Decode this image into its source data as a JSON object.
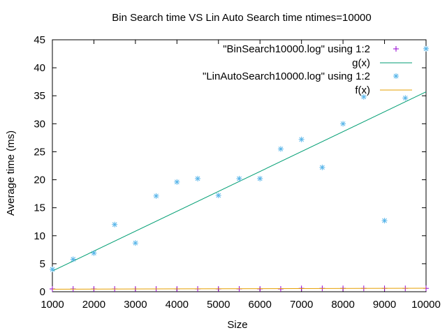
{
  "chart_data": {
    "type": "scatter",
    "title": "Bin Search time VS Lin Auto Search time ntimes=10000",
    "xlabel": "Size",
    "ylabel": "Average time (ms)",
    "xlim": [
      1000,
      10000
    ],
    "ylim": [
      0,
      45
    ],
    "xticks": [
      1000,
      2000,
      3000,
      4000,
      5000,
      6000,
      7000,
      8000,
      9000,
      10000
    ],
    "yticks": [
      0,
      5,
      10,
      15,
      20,
      25,
      30,
      35,
      40,
      45
    ],
    "grid": false,
    "legend_position": "top-right",
    "series": [
      {
        "name": "\"BinSearch10000.log\" using 1:2",
        "kind": "points",
        "marker": "plus",
        "color": "#9400d3",
        "x": [
          1000,
          1500,
          2000,
          2500,
          3000,
          3500,
          4000,
          4500,
          5000,
          5500,
          6000,
          6500,
          7000,
          7500,
          8000,
          8500,
          9000,
          9500,
          10000
        ],
        "y": [
          0.5,
          0.5,
          0.5,
          0.5,
          0.5,
          0.5,
          0.5,
          0.5,
          0.5,
          0.5,
          0.5,
          0.5,
          0.6,
          0.6,
          0.6,
          0.6,
          0.6,
          0.6,
          0.6
        ]
      },
      {
        "name": "g(x)",
        "kind": "line",
        "color": "#009e73",
        "x": [
          1000,
          10000
        ],
        "y": [
          3.7,
          35.7
        ]
      },
      {
        "name": "\"LinAutoSearch10000.log\" using 1:2",
        "kind": "points",
        "marker": "star",
        "color": "#56b4e9",
        "x": [
          1000,
          1500,
          2000,
          2500,
          3000,
          3500,
          4000,
          4500,
          5000,
          5500,
          6000,
          6500,
          7000,
          7500,
          8000,
          8500,
          9000,
          9500,
          10000
        ],
        "y": [
          4.0,
          5.8,
          6.9,
          12.0,
          8.7,
          17.1,
          19.6,
          20.2,
          17.2,
          20.2,
          20.2,
          25.5,
          27.2,
          22.2,
          30.0,
          34.8,
          12.7,
          34.6,
          43.4
        ]
      },
      {
        "name": "f(x)",
        "kind": "line",
        "color": "#e69f00",
        "x": [
          1000,
          10000
        ],
        "y": [
          0.45,
          0.62
        ]
      }
    ]
  }
}
